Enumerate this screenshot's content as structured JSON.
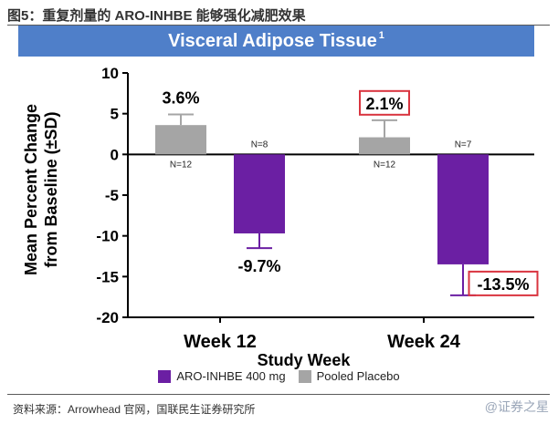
{
  "figure_title": "图5：重复剂量的 ARO-INHBE 能够强化减肥效果",
  "banner": {
    "text": "Visceral Adipose Tissue",
    "superscript": "1"
  },
  "source": "资料来源：Arrowhead 官网，国联民生证券研究所",
  "watermark": "@证券之星",
  "chart_data": {
    "type": "bar",
    "title": "Visceral Adipose Tissue",
    "xlabel": "Study Week",
    "ylabel": "Mean Percent Change from Baseline (±SD)",
    "ylim": [
      -20,
      10
    ],
    "yticks": [
      10,
      5,
      0,
      -5,
      -10,
      -15,
      -20
    ],
    "categories": [
      "Week 12",
      "Week 24"
    ],
    "legend_position": "bottom",
    "series": [
      {
        "name": "ARO-INHBE 400 mg",
        "color": "#6b1fa3",
        "values": [
          -9.7,
          -13.5
        ],
        "sd": [
          1.8,
          3.8
        ],
        "labels": [
          "-9.7%",
          "-13.5%"
        ],
        "n": [
          "N=8",
          "N=7"
        ],
        "boxed": [
          false,
          true
        ]
      },
      {
        "name": "Pooled Placebo",
        "color": "#a5a5a5",
        "values": [
          3.6,
          2.1
        ],
        "sd": [
          1.3,
          2.1
        ],
        "labels": [
          "3.6%",
          "2.1%"
        ],
        "n": [
          "N=12",
          "N=12"
        ],
        "boxed": [
          false,
          true
        ]
      }
    ]
  }
}
